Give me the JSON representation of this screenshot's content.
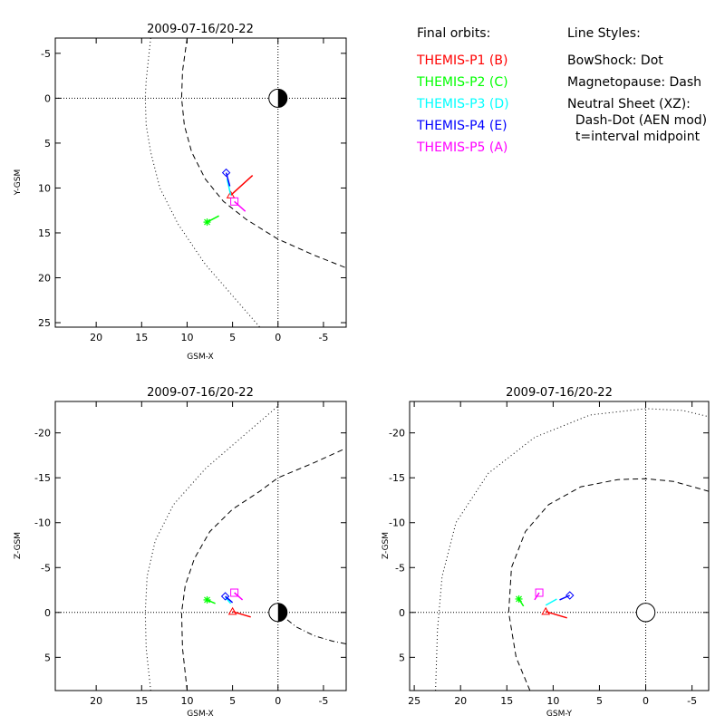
{
  "chart_data": [
    {
      "type": "scatter",
      "title": "2009-07-16/20-22",
      "xlabel": "GSM-X",
      "ylabel": "Y-GSM",
      "xlim": [
        24.5,
        -7.5
      ],
      "ylim": [
        -6.7,
        25.5
      ],
      "xticks": [
        20,
        15,
        10,
        5,
        0,
        -5
      ],
      "yticks": [
        -5,
        0,
        5,
        10,
        15,
        20,
        25
      ],
      "earth": {
        "x": 0,
        "y": 0,
        "r": 1,
        "style": "half-dark"
      },
      "bow_shock": {
        "style": "dot",
        "points": [
          [
            14.0,
            -6.7
          ],
          [
            14.5,
            -2
          ],
          [
            14.6,
            0
          ],
          [
            14.5,
            3
          ],
          [
            14.0,
            6
          ],
          [
            13.0,
            10
          ],
          [
            11.0,
            14
          ],
          [
            8.0,
            18.5
          ],
          [
            5.0,
            22
          ],
          [
            2.0,
            25.5
          ]
        ]
      },
      "magnetopause": {
        "style": "dash",
        "points": [
          [
            10.0,
            -6.7
          ],
          [
            10.5,
            -3
          ],
          [
            10.6,
            0
          ],
          [
            10.3,
            3
          ],
          [
            9.5,
            6
          ],
          [
            8.0,
            9
          ],
          [
            6.0,
            11.5
          ],
          [
            3.5,
            13.5
          ],
          [
            0.0,
            15.7
          ],
          [
            -4.0,
            17.5
          ],
          [
            -7.5,
            18.9
          ]
        ]
      },
      "series": [
        {
          "name": "THEMIS-P1 (B)",
          "color": "#ff0000",
          "marker": "triangle",
          "track": [
            [
              5.2,
              10.8
            ],
            [
              2.8,
              8.6
            ]
          ]
        },
        {
          "name": "THEMIS-P2 (C)",
          "color": "#00ff00",
          "marker": "star",
          "track": [
            [
              7.8,
              13.8
            ],
            [
              6.5,
              13.1
            ]
          ]
        },
        {
          "name": "THEMIS-P3 (D)",
          "color": "#00ffff",
          "marker": "none",
          "track": [
            [
              5.6,
              9.0
            ],
            [
              5.2,
              10.8
            ]
          ]
        },
        {
          "name": "THEMIS-P4 (E)",
          "color": "#0000ff",
          "marker": "diamond",
          "track": [
            [
              5.7,
              8.3
            ],
            [
              5.3,
              9.8
            ]
          ]
        },
        {
          "name": "THEMIS-P5 (A)",
          "color": "#ff00ff",
          "marker": "square",
          "track": [
            [
              4.8,
              11.5
            ],
            [
              3.6,
              12.6
            ]
          ]
        }
      ]
    },
    {
      "type": "scatter",
      "title": "2009-07-16/20-22",
      "xlabel": "GSM-X",
      "ylabel": "Z-GSM",
      "xlim": [
        24.5,
        -7.5
      ],
      "ylim": [
        -23.5,
        8.7
      ],
      "xticks": [
        20,
        15,
        10,
        5,
        0,
        -5
      ],
      "yticks": [
        5,
        0,
        -5,
        -10,
        -15,
        -20
      ],
      "earth": {
        "x": 0,
        "y": 0,
        "r": 1,
        "style": "half-dark"
      },
      "bow_shock": {
        "style": "dot",
        "points": [
          [
            14.0,
            8.7
          ],
          [
            14.5,
            4
          ],
          [
            14.6,
            0
          ],
          [
            14.4,
            -4
          ],
          [
            13.5,
            -8
          ],
          [
            11.5,
            -12
          ],
          [
            8.0,
            -16
          ],
          [
            4.0,
            -19.5
          ],
          [
            0.0,
            -23
          ]
        ]
      },
      "magnetopause": {
        "style": "dash",
        "points": [
          [
            10.0,
            8.7
          ],
          [
            10.5,
            4
          ],
          [
            10.6,
            0
          ],
          [
            10.2,
            -3
          ],
          [
            9.2,
            -6
          ],
          [
            7.5,
            -9
          ],
          [
            5.0,
            -11.5
          ],
          [
            2.0,
            -13.5
          ],
          [
            0.0,
            -15
          ],
          [
            -4.0,
            -16.7
          ],
          [
            -7.5,
            -18.3
          ]
        ]
      },
      "neutral_sheet": {
        "style": "dash-dot",
        "points": [
          [
            0.0,
            0.0
          ],
          [
            -2.0,
            1.6
          ],
          [
            -4.0,
            2.6
          ],
          [
            -6.0,
            3.2
          ],
          [
            -7.5,
            3.5
          ]
        ]
      },
      "series": [
        {
          "name": "THEMIS-P1 (B)",
          "color": "#ff0000",
          "marker": "triangle",
          "track": [
            [
              5.0,
              -0.1
            ],
            [
              3.0,
              0.5
            ]
          ]
        },
        {
          "name": "THEMIS-P2 (C)",
          "color": "#00ff00",
          "marker": "star",
          "track": [
            [
              7.8,
              -1.4
            ],
            [
              6.9,
              -1.0
            ]
          ]
        },
        {
          "name": "THEMIS-P3 (D)",
          "color": "#00ffff",
          "marker": "none",
          "track": [
            [
              5.8,
              -1.7
            ],
            [
              5.2,
              -1.0
            ]
          ]
        },
        {
          "name": "THEMIS-P4 (E)",
          "color": "#0000ff",
          "marker": "diamond",
          "track": [
            [
              5.8,
              -1.8
            ],
            [
              5.0,
              -1.1
            ]
          ]
        },
        {
          "name": "THEMIS-P5 (A)",
          "color": "#ff00ff",
          "marker": "square",
          "track": [
            [
              4.8,
              -2.2
            ],
            [
              3.9,
              -1.4
            ]
          ]
        }
      ]
    },
    {
      "type": "scatter",
      "title": "2009-07-16/20-22",
      "xlabel": "GSM-Y",
      "ylabel": "Z-GSM",
      "xlim": [
        25.5,
        -6.8
      ],
      "ylim": [
        -23.5,
        8.7
      ],
      "xticks": [
        25,
        20,
        15,
        10,
        5,
        0,
        -5
      ],
      "yticks": [
        5,
        0,
        -5,
        -10,
        -15,
        -20
      ],
      "earth": {
        "x": 0,
        "y": 0,
        "r": 1,
        "style": "circle"
      },
      "bow_shock": {
        "style": "dot",
        "points": [
          [
            22.7,
            8.7
          ],
          [
            22.5,
            2
          ],
          [
            22.0,
            -4
          ],
          [
            20.5,
            -10
          ],
          [
            17.0,
            -15.5
          ],
          [
            12.0,
            -19.5
          ],
          [
            6.0,
            -22
          ],
          [
            0.0,
            -22.7
          ],
          [
            -4.0,
            -22.5
          ],
          [
            -6.8,
            -21.8
          ]
        ]
      },
      "magnetopause": {
        "style": "dash",
        "points": [
          [
            12.5,
            8.7
          ],
          [
            14.0,
            5
          ],
          [
            14.8,
            0
          ],
          [
            14.5,
            -5
          ],
          [
            13.0,
            -9
          ],
          [
            10.5,
            -12
          ],
          [
            7.0,
            -14
          ],
          [
            3.0,
            -14.8
          ],
          [
            0.0,
            -14.9
          ],
          [
            -3.0,
            -14.6
          ],
          [
            -6.8,
            -13.5
          ]
        ]
      },
      "series": [
        {
          "name": "THEMIS-P1 (B)",
          "color": "#ff0000",
          "marker": "triangle",
          "track": [
            [
              10.8,
              -0.1
            ],
            [
              8.5,
              0.6
            ]
          ]
        },
        {
          "name": "THEMIS-P2 (C)",
          "color": "#00ff00",
          "marker": "star",
          "track": [
            [
              13.7,
              -1.5
            ],
            [
              13.2,
              -0.7
            ]
          ]
        },
        {
          "name": "THEMIS-P3 (D)",
          "color": "#00ffff",
          "marker": "none",
          "track": [
            [
              10.8,
              -0.8
            ],
            [
              9.6,
              -1.5
            ]
          ]
        },
        {
          "name": "THEMIS-P4 (E)",
          "color": "#0000ff",
          "marker": "diamond",
          "track": [
            [
              8.2,
              -1.9
            ],
            [
              9.3,
              -1.4
            ]
          ]
        },
        {
          "name": "THEMIS-P5 (A)",
          "color": "#ff00ff",
          "marker": "square",
          "track": [
            [
              11.5,
              -2.2
            ],
            [
              12.0,
              -1.4
            ]
          ]
        }
      ]
    }
  ],
  "legend": {
    "orbits_header": "Final orbits:",
    "orbits": [
      {
        "label": "THEMIS-P1 (B)",
        "color": "#ff0000"
      },
      {
        "label": "THEMIS-P2 (C)",
        "color": "#00ff00"
      },
      {
        "label": "THEMIS-P3 (D)",
        "color": "#00ffff"
      },
      {
        "label": "THEMIS-P4 (E)",
        "color": "#0000ff"
      },
      {
        "label": "THEMIS-P5 (A)",
        "color": "#ff00ff"
      }
    ],
    "styles_header": "Line Styles:",
    "styles": [
      "BowShock: Dot",
      "Magnetopause: Dash",
      "Neutral Sheet (XZ):",
      "  Dash-Dot (AEN mod)",
      "  t=interval midpoint"
    ]
  }
}
